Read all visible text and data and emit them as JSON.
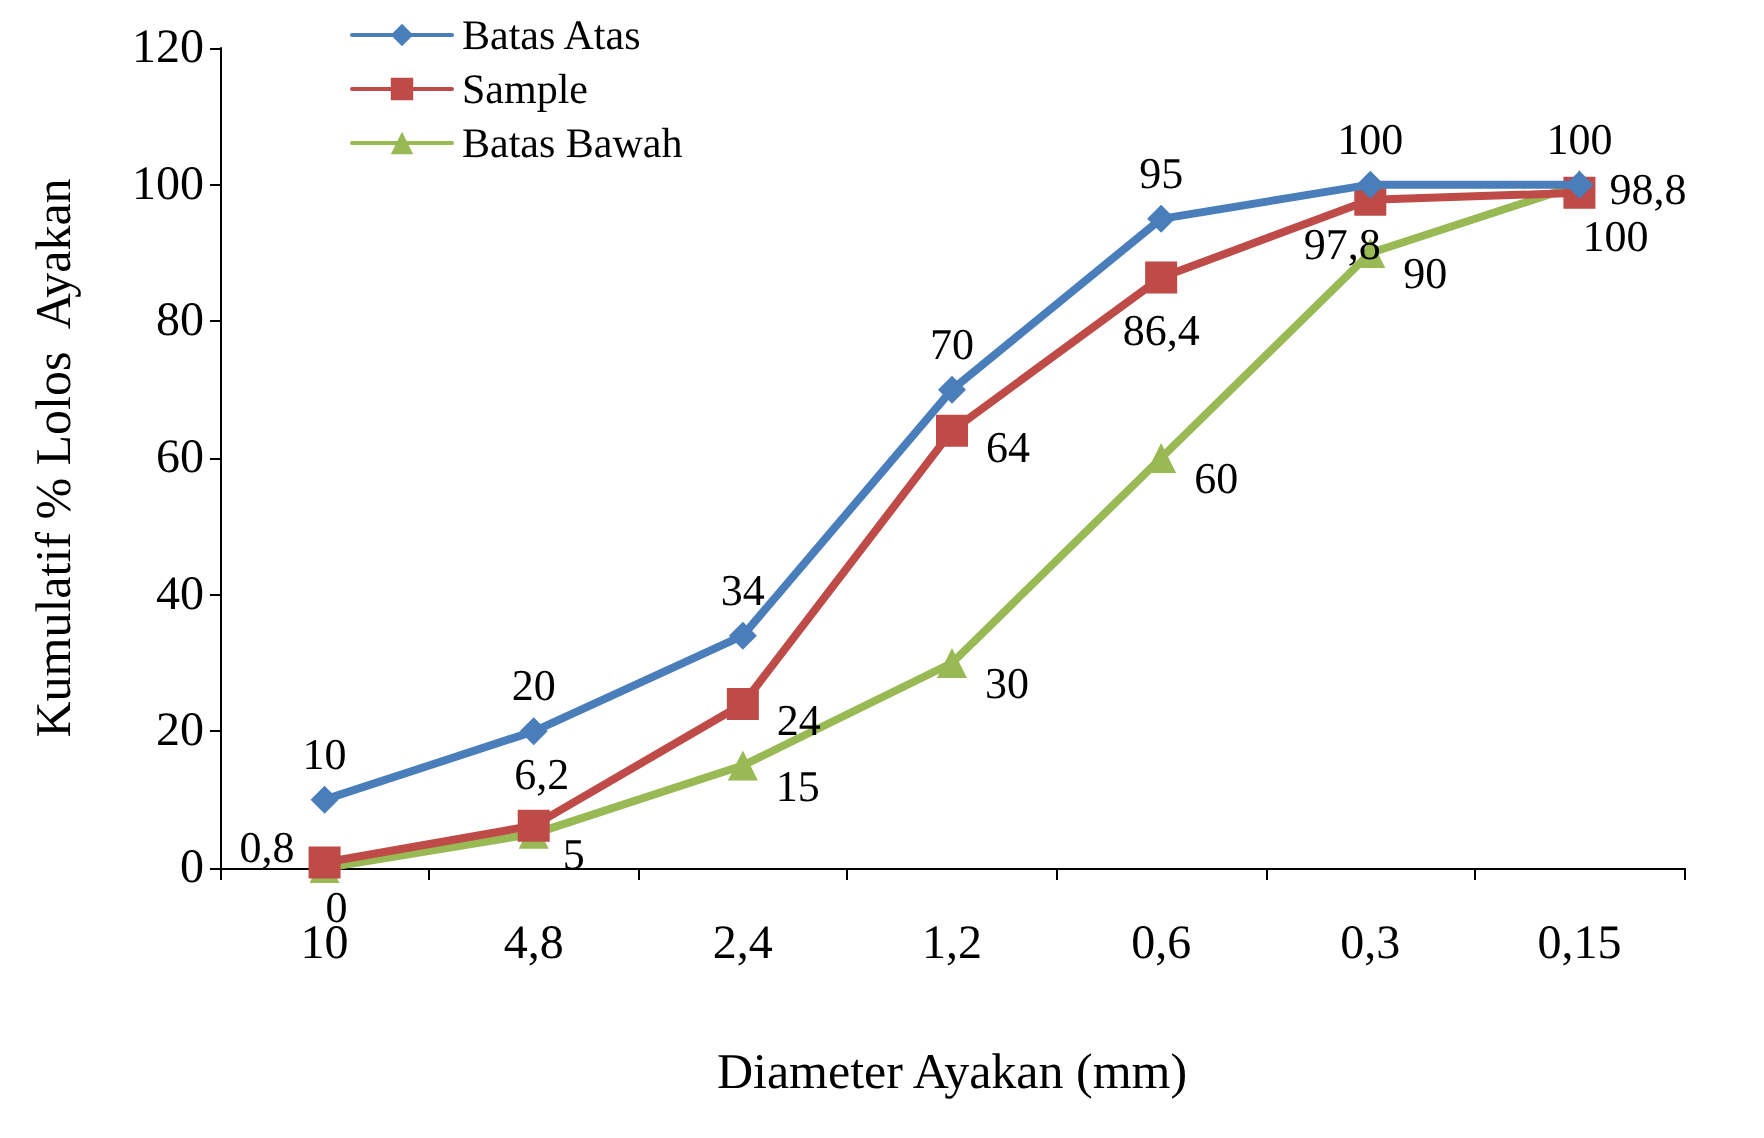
{
  "chart_data": {
    "type": "line",
    "xlabel": "Diameter Ayakan (mm)",
    "ylabel": "Kumulatif % Lolos  Ayakan",
    "categories": [
      "10",
      "4,8",
      "2,4",
      "1,2",
      "0,6",
      "0,3",
      "0,15"
    ],
    "series": [
      {
        "name": "Batas Atas",
        "color": "#4a7ebb",
        "marker": "diamond",
        "values": [
          10,
          20,
          34,
          70,
          95,
          100,
          100
        ],
        "value_labels": [
          "10",
          "20",
          "34",
          "70",
          "95",
          "100",
          "100"
        ]
      },
      {
        "name": "Sample",
        "color": "#be4b48",
        "marker": "square",
        "values": [
          0.8,
          6.2,
          24,
          64,
          86.4,
          97.8,
          98.8
        ],
        "value_labels": [
          "0,8",
          "6,2",
          "24",
          "64",
          "86,4",
          "97,8",
          "98,8"
        ]
      },
      {
        "name": "Batas Bawah",
        "color": "#98b954",
        "marker": "triangle",
        "values": [
          0,
          5,
          15,
          30,
          60,
          90,
          100
        ],
        "value_labels": [
          "0",
          "5",
          "15",
          "30",
          "60",
          "90",
          "100"
        ]
      }
    ],
    "ylim": [
      0,
      120
    ],
    "yticks": [
      0,
      20,
      40,
      60,
      80,
      100,
      120
    ],
    "grid": false,
    "legend": "top left",
    "line_style": "solid"
  }
}
